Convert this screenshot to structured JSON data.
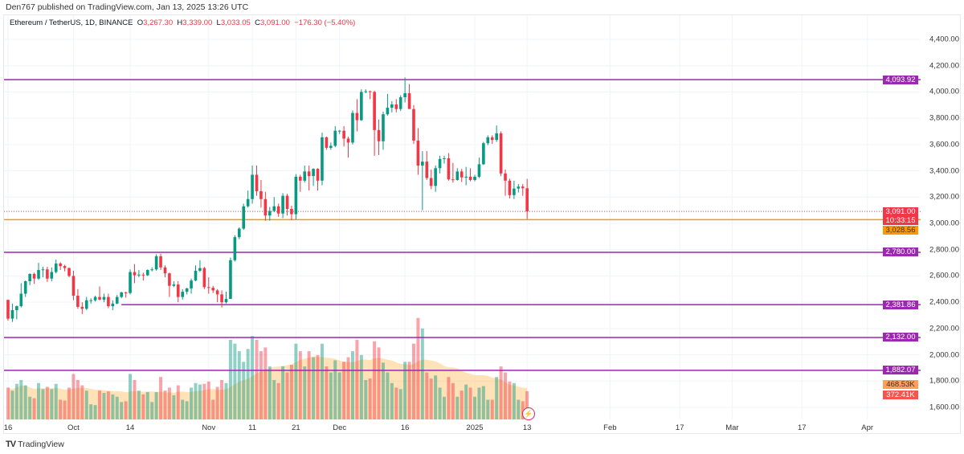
{
  "publisher": "Den767 published on TradingView.com, Jan 13, 2025 13:26 UTC",
  "legend": {
    "symbol": "Ethereum / TetherUS, 1D, BINANCE",
    "o_label": "O",
    "o": "3,267.30",
    "h_label": "H",
    "h": "3,339.00",
    "l_label": "L",
    "l": "3,033.05",
    "c_label": "C",
    "c": "3,091.00",
    "change": "−176.30 (−5.40%)"
  },
  "colors": {
    "up": "#089981",
    "down": "#f23645",
    "level": "#9c27b0",
    "support": "#ff9800",
    "volume_ma": "#ff9800"
  },
  "price_axis": {
    "ticks": [
      4400,
      4200,
      4000,
      3800,
      3600,
      3400,
      3200,
      3000,
      2800,
      2600,
      2400,
      2200,
      2000,
      1800,
      1600
    ]
  },
  "levels": [
    {
      "price": 4093.92,
      "label": "4,093.92",
      "kind": "level"
    },
    {
      "price": 2780.0,
      "label": "2,780.00",
      "kind": "level"
    },
    {
      "price": 2381.86,
      "label": "2,381.86",
      "kind": "level",
      "from": "2024-10-12"
    },
    {
      "price": 2132.0,
      "label": "2,132.00",
      "kind": "level"
    },
    {
      "price": 1882.07,
      "label": "1,882.07",
      "kind": "level"
    },
    {
      "price": 3028.56,
      "label": "3,028.56",
      "kind": "support"
    }
  ],
  "last_price": {
    "price": 3091.0,
    "label": "3,091.00",
    "countdown": "10:33:15"
  },
  "volume_labels": {
    "ma": "468.53K",
    "last": "372.41K"
  },
  "time_axis": [
    {
      "label": "16",
      "date": "2024-09-16"
    },
    {
      "label": "Oct",
      "date": "2024-10-01"
    },
    {
      "label": "14",
      "date": "2024-10-14"
    },
    {
      "label": "Nov",
      "date": "2024-11-01"
    },
    {
      "label": "11",
      "date": "2024-11-11"
    },
    {
      "label": "21",
      "date": "2024-11-21"
    },
    {
      "label": "Dec",
      "date": "2024-12-01"
    },
    {
      "label": "16",
      "date": "2024-12-16"
    },
    {
      "label": "2025",
      "date": "2025-01-01"
    },
    {
      "label": "13",
      "date": "2025-01-13"
    },
    {
      "label": "Feb",
      "date": "2025-02-01"
    },
    {
      "label": "17",
      "date": "2025-02-17"
    },
    {
      "label": "Mar",
      "date": "2025-03-01"
    },
    {
      "label": "17",
      "date": "2025-03-17"
    },
    {
      "label": "Apr",
      "date": "2025-04-01"
    }
  ],
  "start_date": "2024-09-16",
  "candles": [
    [
      2418,
      2420,
      2260,
      2275
    ],
    [
      2275,
      2390,
      2250,
      2340
    ],
    [
      2340,
      2375,
      2270,
      2370
    ],
    [
      2370,
      2545,
      2360,
      2465
    ],
    [
      2465,
      2565,
      2440,
      2560
    ],
    [
      2560,
      2620,
      2530,
      2615
    ],
    [
      2615,
      2625,
      2540,
      2580
    ],
    [
      2580,
      2700,
      2570,
      2645
    ],
    [
      2645,
      2670,
      2590,
      2650
    ],
    [
      2650,
      2670,
      2555,
      2580
    ],
    [
      2580,
      2665,
      2560,
      2630
    ],
    [
      2630,
      2725,
      2620,
      2695
    ],
    [
      2695,
      2705,
      2645,
      2675
    ],
    [
      2675,
      2685,
      2635,
      2660
    ],
    [
      2660,
      2665,
      2590,
      2600
    ],
    [
      2600,
      2640,
      2415,
      2450
    ],
    [
      2450,
      2500,
      2350,
      2365
    ],
    [
      2365,
      2400,
      2310,
      2350
    ],
    [
      2350,
      2440,
      2340,
      2415
    ],
    [
      2415,
      2430,
      2390,
      2415
    ],
    [
      2415,
      2450,
      2405,
      2440
    ],
    [
      2440,
      2520,
      2415,
      2420
    ],
    [
      2420,
      2465,
      2400,
      2440
    ],
    [
      2440,
      2465,
      2355,
      2370
    ],
    [
      2370,
      2415,
      2340,
      2390
    ],
    [
      2390,
      2455,
      2385,
      2440
    ],
    [
      2440,
      2480,
      2430,
      2475
    ],
    [
      2475,
      2480,
      2435,
      2470
    ],
    [
      2470,
      2650,
      2460,
      2630
    ],
    [
      2630,
      2690,
      2545,
      2605
    ],
    [
      2605,
      2645,
      2590,
      2610
    ],
    [
      2610,
      2625,
      2565,
      2605
    ],
    [
      2605,
      2650,
      2600,
      2645
    ],
    [
      2645,
      2665,
      2635,
      2650
    ],
    [
      2650,
      2765,
      2640,
      2750
    ],
    [
      2750,
      2770,
      2645,
      2665
    ],
    [
      2665,
      2680,
      2590,
      2620
    ],
    [
      2620,
      2625,
      2440,
      2525
    ],
    [
      2525,
      2560,
      2515,
      2535
    ],
    [
      2535,
      2560,
      2400,
      2440
    ],
    [
      2440,
      2500,
      2420,
      2480
    ],
    [
      2480,
      2510,
      2460,
      2505
    ],
    [
      2505,
      2580,
      2465,
      2565
    ],
    [
      2565,
      2680,
      2560,
      2640
    ],
    [
      2640,
      2720,
      2630,
      2660
    ],
    [
      2660,
      2670,
      2500,
      2515
    ],
    [
      2515,
      2590,
      2465,
      2510
    ],
    [
      2510,
      2525,
      2470,
      2490
    ],
    [
      2490,
      2500,
      2400,
      2460
    ],
    [
      2460,
      2490,
      2360,
      2400
    ],
    [
      2400,
      2480,
      2390,
      2425
    ],
    [
      2425,
      2740,
      2425,
      2720
    ],
    [
      2720,
      2910,
      2710,
      2895
    ],
    [
      2895,
      2970,
      2880,
      2960
    ],
    [
      2960,
      3150,
      2950,
      3130
    ],
    [
      3130,
      3250,
      3120,
      3185
    ],
    [
      3185,
      3440,
      3150,
      3370
    ],
    [
      3370,
      3440,
      3210,
      3245
    ],
    [
      3245,
      3330,
      3120,
      3185
    ],
    [
      3185,
      3240,
      3020,
      3060
    ],
    [
      3060,
      3125,
      3020,
      3095
    ],
    [
      3095,
      3200,
      3085,
      3130
    ],
    [
      3130,
      3150,
      3050,
      3075
    ],
    [
      3075,
      3230,
      3040,
      3210
    ],
    [
      3210,
      3225,
      3060,
      3110
    ],
    [
      3110,
      3135,
      3025,
      3070
    ],
    [
      3070,
      3375,
      3030,
      3355
    ],
    [
      3355,
      3370,
      3240,
      3325
    ],
    [
      3325,
      3440,
      3310,
      3395
    ],
    [
      3395,
      3440,
      3250,
      3360
    ],
    [
      3360,
      3420,
      3285,
      3415
    ],
    [
      3415,
      3420,
      3250,
      3325
    ],
    [
      3325,
      3690,
      3290,
      3655
    ],
    [
      3655,
      3660,
      3560,
      3575
    ],
    [
      3575,
      3615,
      3560,
      3590
    ],
    [
      3590,
      3740,
      3580,
      3705
    ],
    [
      3705,
      3710,
      3680,
      3705
    ],
    [
      3705,
      3740,
      3585,
      3645
    ],
    [
      3645,
      3660,
      3500,
      3615
    ],
    [
      3615,
      3860,
      3600,
      3840
    ],
    [
      3840,
      3945,
      3700,
      3785
    ],
    [
      3785,
      4020,
      3780,
      4000
    ],
    [
      4000,
      4020,
      3990,
      4005
    ],
    [
      4005,
      4010,
      3945,
      4000
    ],
    [
      4000,
      4010,
      3515,
      3710
    ],
    [
      3710,
      3790,
      3520,
      3625
    ],
    [
      3625,
      3850,
      3560,
      3830
    ],
    [
      3830,
      3985,
      3820,
      3880
    ],
    [
      3880,
      3930,
      3845,
      3905
    ],
    [
      3905,
      3945,
      3845,
      3870
    ],
    [
      3870,
      3975,
      3855,
      3960
    ],
    [
      3960,
      4110,
      3920,
      3990
    ],
    [
      3990,
      4060,
      3885,
      3870
    ],
    [
      3870,
      3900,
      3605,
      3630
    ],
    [
      3630,
      3725,
      3370,
      3440
    ],
    [
      3440,
      3550,
      3100,
      3470
    ],
    [
      3470,
      3550,
      3330,
      3345
    ],
    [
      3345,
      3410,
      3260,
      3285
    ],
    [
      3285,
      3440,
      3240,
      3420
    ],
    [
      3420,
      3515,
      3380,
      3490
    ],
    [
      3490,
      3515,
      3455,
      3495
    ],
    [
      3495,
      3535,
      3325,
      3335
    ],
    [
      3335,
      3460,
      3310,
      3330
    ],
    [
      3330,
      3420,
      3325,
      3395
    ],
    [
      3395,
      3415,
      3315,
      3350
    ],
    [
      3350,
      3430,
      3290,
      3355
    ],
    [
      3355,
      3420,
      3320,
      3330
    ],
    [
      3330,
      3370,
      3320,
      3355
    ],
    [
      3355,
      3500,
      3345,
      3450
    ],
    [
      3450,
      3620,
      3445,
      3610
    ],
    [
      3610,
      3670,
      3595,
      3655
    ],
    [
      3655,
      3670,
      3605,
      3635
    ],
    [
      3635,
      3745,
      3620,
      3685
    ],
    [
      3685,
      3700,
      3360,
      3380
    ],
    [
      3380,
      3410,
      3210,
      3325
    ],
    [
      3325,
      3340,
      3190,
      3215
    ],
    [
      3215,
      3325,
      3185,
      3265
    ],
    [
      3265,
      3300,
      3235,
      3280
    ],
    [
      3280,
      3300,
      3210,
      3267.3
    ],
    [
      3267.3,
      3339,
      3033.05,
      3091
    ]
  ],
  "volumes_k": [
    420,
    380,
    470,
    520,
    450,
    300,
    280,
    480,
    400,
    430,
    400,
    470,
    260,
    250,
    420,
    600,
    520,
    450,
    380,
    200,
    190,
    380,
    350,
    370,
    330,
    300,
    230,
    240,
    600,
    520,
    380,
    330,
    360,
    230,
    360,
    560,
    380,
    420,
    320,
    450,
    260,
    240,
    420,
    480,
    460,
    470,
    500,
    260,
    430,
    520,
    480,
    1050,
    1000,
    900,
    760,
    930,
    1100,
    1050,
    900,
    950,
    700,
    520,
    480,
    700,
    620,
    720,
    1000,
    900,
    700,
    900,
    820,
    850,
    1000,
    700,
    620,
    780,
    620,
    760,
    820,
    900,
    1050,
    850,
    520,
    540,
    1030,
    950,
    750,
    620,
    480,
    420,
    400,
    760,
    760,
    1000,
    1340,
    1200,
    620,
    540,
    580,
    420,
    300,
    560,
    480,
    300,
    380,
    460,
    420,
    300,
    420,
    440,
    260,
    260,
    560,
    700,
    620,
    500,
    480,
    260,
    240,
    372.41
  ],
  "footer": {
    "brand": "TradingView"
  }
}
